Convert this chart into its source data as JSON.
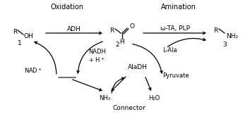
{
  "bg_color": "#ffffff",
  "fig_width": 3.54,
  "fig_height": 1.69,
  "dpi": 100,
  "title_oxidation": "Oxidation",
  "title_amination": "Amination",
  "label_connector": "Connector",
  "adh_label": "ADH",
  "ota_label": "ω-TA, PLP",
  "nadh_label": "NADH\n+ H⁺",
  "nad_label": "NAD⁺",
  "aladh_label": "AlaDH",
  "lala_label": "L-Ala",
  "pyruvate_label": "Pyruvate",
  "nh3_label": "NH₃",
  "h2o_label": "H₂O",
  "text_color": "#000000",
  "arrow_color": "#000000",
  "font_size": 6.5
}
